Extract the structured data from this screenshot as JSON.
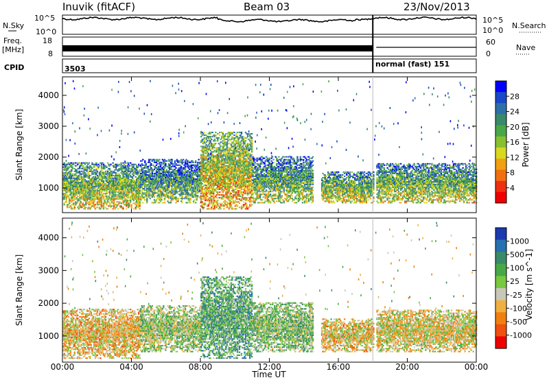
{
  "header": {
    "station": "Inuvik (fitACF)",
    "beam": "Beam 03",
    "date": "23/Nov/2013"
  },
  "status_panel": {
    "left_labels": {
      "nsky": "N.Sky",
      "freq": "Freq.",
      "freq_unit": "[MHz]",
      "cpid": "CPID"
    },
    "right_labels": {
      "nsearch": "N.Search",
      "nave": "Nave"
    },
    "noise_ticks_left": [
      "10^5",
      "10^0"
    ],
    "noise_ticks_right": [
      "10^5",
      "10^0"
    ],
    "freq_ticks": [
      "18",
      "8"
    ],
    "nave_ticks": [
      "60",
      "0"
    ],
    "cpid_left": "3503",
    "cpid_right": "normal (fast) 151"
  },
  "chart_data": [
    {
      "type": "heatmap",
      "title": "",
      "xlabel": "",
      "ylabel": "Slant Range [km]",
      "x_ticks": [
        "00:00",
        "04:00",
        "08:00",
        "12:00",
        "16:00",
        "20:00",
        "00:00"
      ],
      "y_ticks": [
        1000,
        2000,
        3000,
        4000
      ],
      "ylim": [
        200,
        4600
      ],
      "colorbar": {
        "label": "Power [dB]",
        "ticks": [
          "4",
          "8",
          "12",
          "16",
          "20",
          "24",
          "28"
        ],
        "colors": [
          "#0000ff",
          "#1a48c8",
          "#2f6fa8",
          "#3a8a6a",
          "#48a848",
          "#88c030",
          "#d8d820",
          "#f0a010",
          "#f07010",
          "#ee3010",
          "#ee0000"
        ],
        "range": [
          0,
          30
        ]
      },
      "echo_regions": [
        {
          "t0": 0.0,
          "t1": 4.5,
          "r0": 300,
          "r1": 1800,
          "level": 0.62
        },
        {
          "t0": 4.5,
          "t1": 8.0,
          "r0": 500,
          "r1": 1900,
          "level": 0.5
        },
        {
          "t0": 8.0,
          "t1": 11.0,
          "r0": 300,
          "r1": 2800,
          "level": 0.72
        },
        {
          "t0": 11.0,
          "t1": 14.5,
          "r0": 500,
          "r1": 2000,
          "level": 0.55
        },
        {
          "t0": 15.0,
          "t1": 18.0,
          "r0": 500,
          "r1": 1500,
          "level": 0.6
        },
        {
          "t0": 18.2,
          "t1": 24.0,
          "r0": 500,
          "r1": 1800,
          "level": 0.58
        }
      ]
    },
    {
      "type": "heatmap",
      "title": "",
      "xlabel": "Time UT",
      "ylabel": "Slant Range [km]",
      "x_ticks": [
        "00:00",
        "04:00",
        "08:00",
        "12:00",
        "16:00",
        "20:00",
        "00:00"
      ],
      "y_ticks": [
        1000,
        2000,
        3000,
        4000
      ],
      "ylim": [
        200,
        4600
      ],
      "colorbar": {
        "label": "Velocity [m s^-1]",
        "ticks": [
          "1000",
          "500",
          "100",
          "25",
          "-25",
          "-100",
          "-500",
          "-1000"
        ],
        "colors": [
          "#1a3ab0",
          "#2870b0",
          "#3a8a6a",
          "#48a848",
          "#78c840",
          "#c8c8b8",
          "#f0b040",
          "#f08010",
          "#f05010",
          "#ee0000"
        ],
        "range": [
          -1000,
          1000
        ]
      },
      "echo_regions": [
        {
          "t0": 0.0,
          "t1": 4.5,
          "r0": 300,
          "r1": 1800,
          "velocity": -250
        },
        {
          "t0": 4.5,
          "t1": 8.0,
          "r0": 500,
          "r1": 1900,
          "velocity": 50
        },
        {
          "t0": 8.0,
          "t1": 11.0,
          "r0": 300,
          "r1": 2800,
          "velocity": 300
        },
        {
          "t0": 11.0,
          "t1": 14.5,
          "r0": 500,
          "r1": 2000,
          "velocity": 150
        },
        {
          "t0": 15.0,
          "t1": 18.0,
          "r0": 500,
          "r1": 1500,
          "velocity": -200
        },
        {
          "t0": 18.2,
          "t1": 24.0,
          "r0": 500,
          "r1": 1800,
          "velocity": -150
        }
      ]
    }
  ]
}
